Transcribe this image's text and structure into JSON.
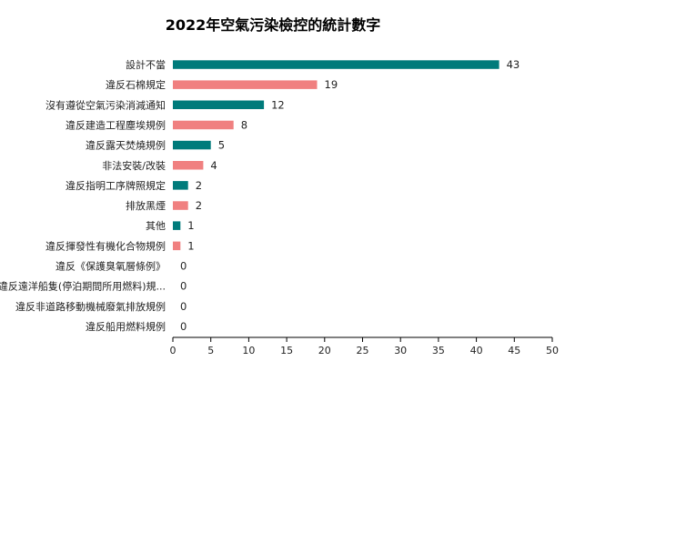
{
  "chart_data": {
    "type": "bar",
    "orientation": "horizontal",
    "title": "2022年空氣污染檢控的統計數字",
    "xlabel": "",
    "ylabel": "",
    "categories": [
      "設計不當",
      "違反石棉規定",
      "沒有遵從空氣污染消減通知",
      "違反建造工程塵埃規例",
      "違反露天焚燒規例",
      "非法安裝/改裝",
      "違反指明工序牌照規定",
      "排放黑煙",
      "其他",
      "違反揮發性有機化合物規例",
      "違反《保護臭氧層條例》",
      "違反遠洋船隻(停泊期間所用燃料)規...",
      "違反非道路移動機械廢氣排放規例",
      "違反船用燃料規例"
    ],
    "values": [
      43,
      19,
      12,
      8,
      5,
      4,
      2,
      2,
      1,
      1,
      0,
      0,
      0,
      0
    ],
    "bar_colors": [
      "#007b7b",
      "#f08080"
    ],
    "xlim": [
      0,
      50
    ],
    "xticks": [
      0,
      5,
      10,
      15,
      20,
      25,
      30,
      35,
      40,
      45,
      50
    ],
    "grid": false,
    "legend": "none"
  }
}
